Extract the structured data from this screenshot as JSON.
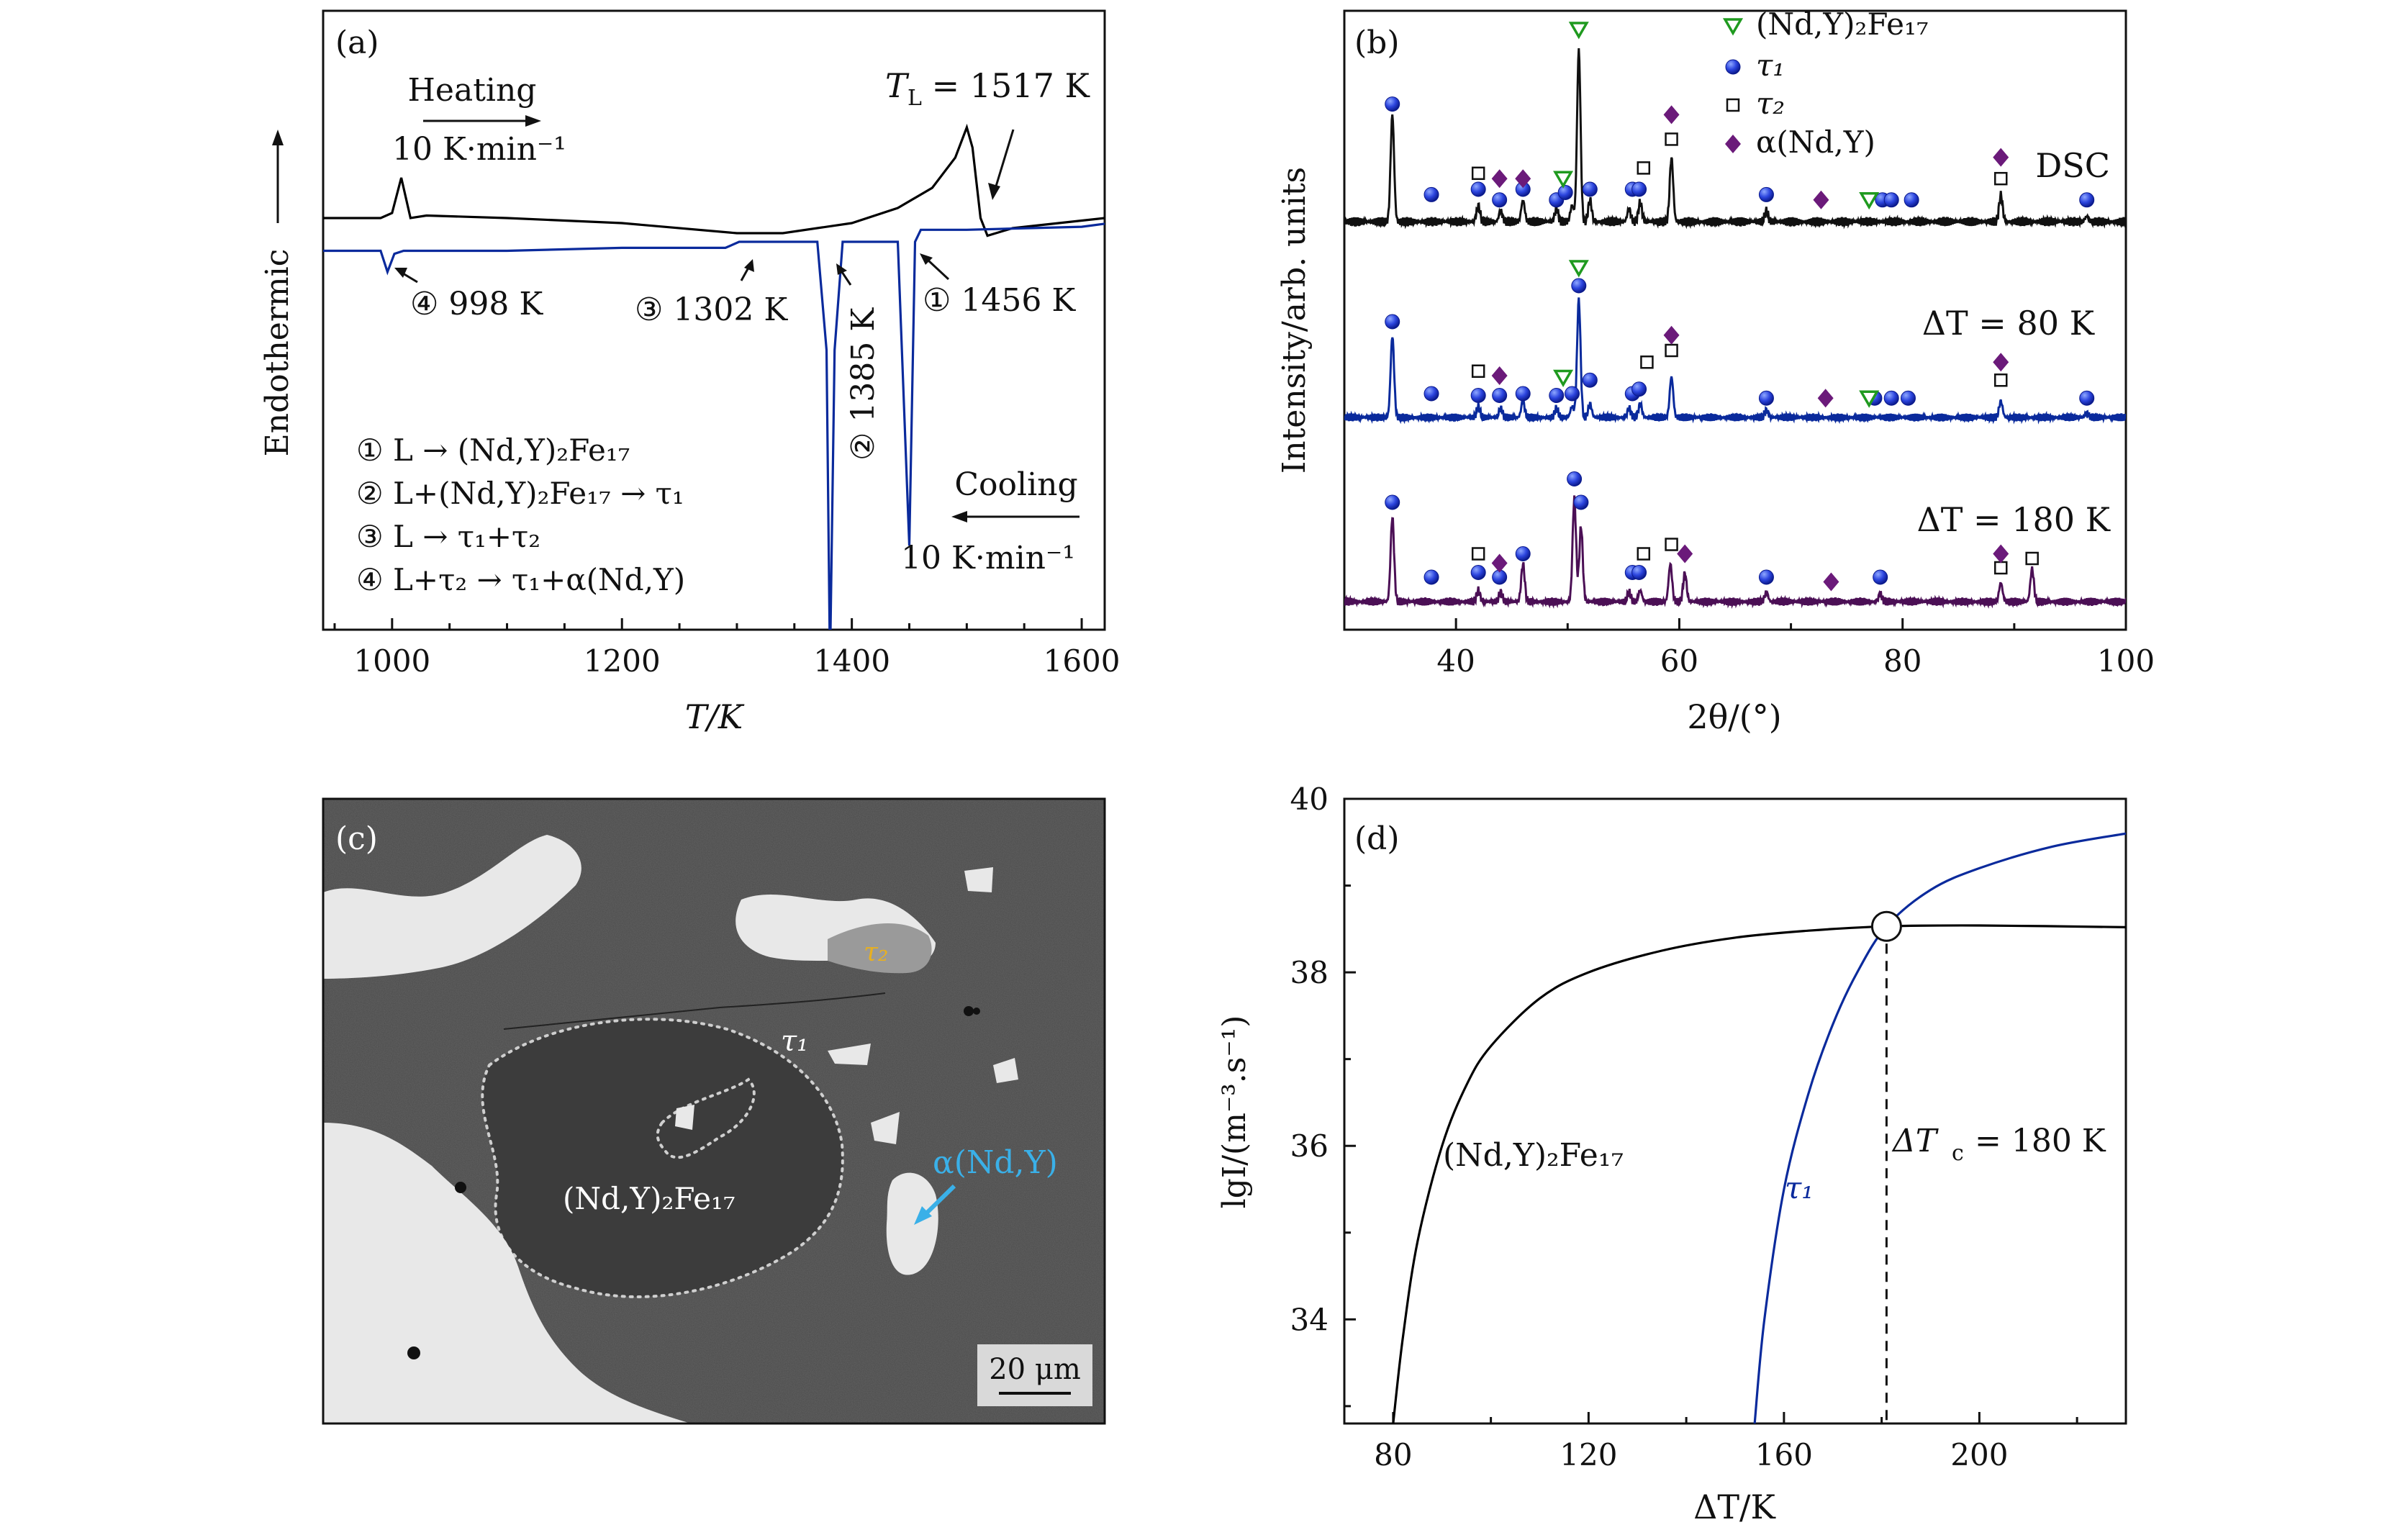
{
  "chart_data": [
    {
      "panel": "(a)",
      "type": "line",
      "xlabel": "T/K",
      "ylabel": "Endothermic",
      "xlim": [
        940,
        1620
      ],
      "xticks": [
        1000,
        1200,
        1400,
        1600
      ],
      "series": [
        {
          "name": "Heating",
          "color": "#000000",
          "x": [
            940,
            990,
            1000,
            1008,
            1016,
            1030,
            1100,
            1200,
            1300,
            1340,
            1400,
            1440,
            1470,
            1490,
            1500,
            1505,
            1512,
            1518,
            1540,
            1580,
            1620
          ],
          "y": [
            0.62,
            0.62,
            0.64,
            0.78,
            0.62,
            0.63,
            0.62,
            0.6,
            0.56,
            0.56,
            0.6,
            0.66,
            0.74,
            0.86,
            0.98,
            0.9,
            0.62,
            0.55,
            0.58,
            0.6,
            0.62
          ]
        },
        {
          "name": "Cooling",
          "color": "#0a2a9c",
          "x": [
            940,
            990,
            996,
            1002,
            1010,
            1100,
            1200,
            1290,
            1302,
            1310,
            1370,
            1378,
            1381,
            1385,
            1392,
            1440,
            1450,
            1455,
            1460,
            1500,
            1600,
            1620
          ],
          "y": [
            0.38,
            0.38,
            0.31,
            0.37,
            0.38,
            0.38,
            0.39,
            0.39,
            0.41,
            0.41,
            0.41,
            0.05,
            -1.0,
            0.05,
            0.41,
            0.41,
            -0.6,
            0.41,
            0.45,
            0.45,
            0.46,
            0.47
          ]
        }
      ],
      "annotations": {
        "heating": "Heating",
        "heating_rate": "10 K·min⁻¹",
        "tl_label": "T",
        "tl_sub": "L",
        "tl_value": " = 1517 K",
        "peak1": "① 1456 K",
        "peak2": "② 1385 K",
        "peak3": "③ 1302 K",
        "peak4": "④ 998 K",
        "cooling": "Cooling",
        "cooling_rate": "10 K·min⁻¹",
        "reactions": [
          "① L → (Nd,Y)₂Fe₁₇",
          "② L+(Nd,Y)₂Fe₁₇ → τ₁",
          "③ L → τ₁+τ₂",
          "④ L+τ₂ → τ₁+α(Nd,Y)"
        ]
      }
    },
    {
      "panel": "(b)",
      "type": "line",
      "xlabel": "2θ/(°)",
      "ylabel": "Intensity/arb. units",
      "xlim": [
        30,
        100
      ],
      "xticks": [
        40,
        60,
        80,
        100
      ],
      "legend": {
        "placement": "top-right",
        "entries": [
          {
            "name": "(Nd,Y)₂Fe₁₇",
            "marker": "triangle-down",
            "color": "#1f9a1f"
          },
          {
            "name": "τ₁",
            "marker": "circle",
            "color": "#2036d8"
          },
          {
            "name": "τ₂",
            "marker": "square-open",
            "color": "#111111"
          },
          {
            "name": "α(Nd,Y)",
            "marker": "diamond",
            "color": "#6b1a7a"
          }
        ]
      },
      "series": [
        {
          "name": "DSC",
          "color": "#111111",
          "peaks": [
            [
              34.3,
              1.0
            ],
            [
              42,
              0.15
            ],
            [
              44,
              0.1
            ],
            [
              46,
              0.2
            ],
            [
              49,
              0.12
            ],
            [
              50.4,
              0.15
            ],
            [
              51,
              1.6
            ],
            [
              52,
              0.2
            ],
            [
              55.5,
              0.12
            ],
            [
              56.5,
              0.18
            ],
            [
              59.3,
              0.6
            ],
            [
              67.8,
              0.1
            ],
            [
              88.8,
              0.25
            ],
            [
              96.5,
              0.05
            ]
          ],
          "markers": [
            {
              "type": "circle",
              "x": [
                34.3,
                37.8,
                42,
                43.9,
                46,
                49,
                49.8,
                52,
                55.8,
                56.4,
                67.8,
                78.2,
                79,
                80.8,
                96.5
              ],
              "level": [
                1.05,
                0.2,
                0.25,
                0.15,
                0.25,
                0.15,
                0.22,
                0.25,
                0.25,
                0.25,
                0.2,
                0.15,
                0.15,
                0.15,
                0.15
              ]
            },
            {
              "type": "triangle-down",
              "x": [
                49.6,
                51,
                77
              ],
              "level": [
                0.35,
                1.75,
                0.15
              ]
            },
            {
              "type": "square-open",
              "x": [
                42,
                56.8,
                59.3,
                88.8
              ],
              "level": [
                0.4,
                0.45,
                0.72,
                0.35
              ]
            },
            {
              "type": "diamond",
              "x": [
                43.9,
                46,
                59.3,
                72.7,
                88.8
              ],
              "level": [
                0.35,
                0.35,
                0.95,
                0.15,
                0.55
              ]
            }
          ]
        },
        {
          "name": "ΔT = 80 K",
          "color": "#0a2a9c",
          "peaks": [
            [
              34.3,
              0.9
            ],
            [
              42,
              0.12
            ],
            [
              44,
              0.1
            ],
            [
              46,
              0.18
            ],
            [
              49,
              0.1
            ],
            [
              50.4,
              0.12
            ],
            [
              51,
              1.3
            ],
            [
              52,
              0.15
            ],
            [
              55.5,
              0.1
            ],
            [
              56.5,
              0.15
            ],
            [
              59.3,
              0.45
            ],
            [
              67.8,
              0.08
            ],
            [
              88.8,
              0.18
            ],
            [
              96.5,
              0.05
            ]
          ],
          "markers": [
            {
              "type": "circle",
              "x": [
                34.3,
                37.8,
                42,
                43.9,
                46,
                49,
                50.4,
                51,
                52,
                55.8,
                56.4,
                67.8,
                77.5,
                79,
                80.5,
                96.5
              ],
              "level": [
                1.0,
                0.2,
                0.18,
                0.18,
                0.2,
                0.18,
                0.2,
                1.4,
                0.35,
                0.2,
                0.25,
                0.15,
                0.15,
                0.15,
                0.15,
                0.15
              ]
            },
            {
              "type": "triangle-down",
              "x": [
                49.6,
                51,
                77
              ],
              "level": [
                0.38,
                1.6,
                0.15
              ]
            },
            {
              "type": "square-open",
              "x": [
                42,
                57.1,
                59.3,
                88.8
              ],
              "level": [
                0.45,
                0.55,
                0.68,
                0.35
              ]
            },
            {
              "type": "diamond",
              "x": [
                43.9,
                59.3,
                73.1,
                88.8
              ],
              "level": [
                0.4,
                0.85,
                0.15,
                0.55
              ]
            }
          ]
        },
        {
          "name": "ΔT = 180 K",
          "color": "#4b0f55",
          "peaks": [
            [
              34.3,
              0.9
            ],
            [
              42,
              0.12
            ],
            [
              44,
              0.1
            ],
            [
              46,
              0.4
            ],
            [
              50.6,
              1.1
            ],
            [
              51.2,
              0.8
            ],
            [
              55.5,
              0.1
            ],
            [
              56.5,
              0.12
            ],
            [
              59.2,
              0.4
            ],
            [
              60.5,
              0.3
            ],
            [
              67.8,
              0.1
            ],
            [
              78,
              0.08
            ],
            [
              88.8,
              0.2
            ],
            [
              91.6,
              0.35
            ]
          ],
          "markers": [
            {
              "type": "circle",
              "x": [
                34.3,
                37.8,
                42,
                43.9,
                46,
                50.6,
                51.2,
                55.8,
                56.4,
                67.8,
                78
              ],
              "level": [
                1.0,
                0.2,
                0.25,
                0.2,
                0.45,
                1.25,
                1.0,
                0.25,
                0.25,
                0.2,
                0.2
              ]
            },
            {
              "type": "square-open",
              "x": [
                42,
                56.8,
                59.3,
                88.8,
                91.6
              ],
              "level": [
                0.45,
                0.45,
                0.55,
                0.3,
                0.4
              ]
            },
            {
              "type": "diamond",
              "x": [
                43.9,
                60.5,
                73.6,
                88.8
              ],
              "level": [
                0.35,
                0.45,
                0.15,
                0.45
              ]
            }
          ]
        }
      ],
      "series_labels": [
        "DSC",
        "ΔT = 80 K",
        "ΔT = 180 K"
      ]
    },
    {
      "panel": "(d)",
      "type": "line",
      "xlabel": "ΔT/K",
      "ylabel": "lgI/(m⁻³.s⁻¹)",
      "xlim": [
        70,
        230
      ],
      "ylim": [
        32.8,
        40
      ],
      "xticks": [
        80,
        120,
        160,
        200
      ],
      "yticks": [
        34,
        36,
        38,
        40
      ],
      "series": [
        {
          "name": "(Nd,Y)₂Fe₁₇",
          "color": "#000000",
          "x": [
            80,
            82,
            85,
            90,
            95,
            100,
            110,
            120,
            135,
            150,
            165,
            181,
            200,
            230
          ],
          "y": [
            32.8,
            33.8,
            34.9,
            36.0,
            36.7,
            37.15,
            37.7,
            38.0,
            38.25,
            38.4,
            38.48,
            38.53,
            38.54,
            38.52
          ]
        },
        {
          "name": "τ₁",
          "color": "#0a2a9c",
          "x": [
            154,
            156,
            160,
            165,
            170,
            175,
            181,
            190,
            200,
            215,
            230
          ],
          "y": [
            32.8,
            34.0,
            35.5,
            36.6,
            37.4,
            38.0,
            38.53,
            38.95,
            39.2,
            39.45,
            39.6
          ]
        }
      ],
      "intersection": {
        "x": 181,
        "y": 38.53
      },
      "annotation": "ΔTc = 180 K",
      "annotation_parts": {
        "lead": "ΔT",
        "sub": "c",
        "rest": " = 180 K"
      },
      "curve_labels": [
        "(Nd,Y)₂Fe₁₇",
        "τ₁"
      ]
    }
  ],
  "micrograph": {
    "panel": "(c)",
    "labels": {
      "tau2": "τ₂",
      "tau1": "τ₁",
      "phase": "(Nd,Y)₂Fe₁₇",
      "alpha": "α(Nd,Y)"
    },
    "scalebar": "20 μm",
    "colors": {
      "tau2": "#e8b020",
      "alpha": "#3ab0e8"
    }
  },
  "panel_labels": [
    "(a)",
    "(b)",
    "(c)",
    "(d)"
  ]
}
